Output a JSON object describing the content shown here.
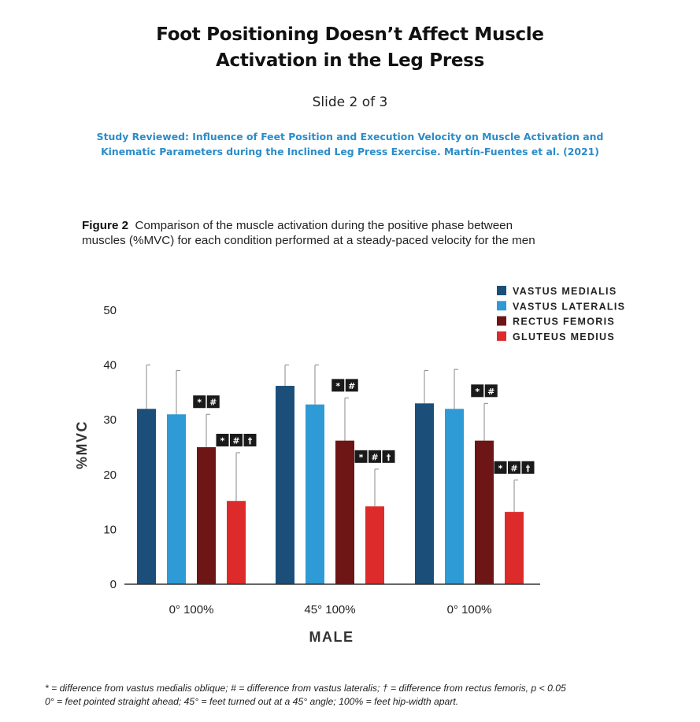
{
  "header": {
    "title_line1": "Foot Positioning Doesn’t Affect Muscle",
    "title_line2": "Activation in the Leg Press",
    "slide": "Slide 2 of 3",
    "study_line1": "Study Reviewed: Influence of Feet Position and Execution Velocity on Muscle Activation and",
    "study_line2": "Kinematic Parameters during the Inclined Leg Press Exercise. Martín-Fuentes et al. (2021)"
  },
  "figure": {
    "label": "Figure 2",
    "caption_line1": "Comparison of the muscle activation during the positive phase between",
    "caption_line2": "muscles (%MVC) for each condition performed at a steady-paced velocity for the men"
  },
  "footnote": {
    "line1": "* = difference from vastus medialis oblique; # = difference from vastus lateralis; † = difference from rectus femoris, p < 0.05",
    "line2": "0° = feet pointed straight ahead; 45° = feet turned out at a 45° angle; 100% = feet hip-width apart."
  },
  "colors": {
    "vastus_medialis": "#1b4f7a",
    "vastus_lateralis": "#2e9ad6",
    "rectus_femoris": "#6e1515",
    "gluteus_medius": "#dd2b2b",
    "study_text": "#2b8cc8",
    "marker_bg": "#1a1a1a"
  },
  "chart_data": {
    "type": "bar",
    "ylabel": "%MVC",
    "xlabel": "MALE",
    "ylim": [
      0,
      50
    ],
    "yticks": [
      0,
      10,
      20,
      30,
      40,
      50
    ],
    "grid": false,
    "legend_position": "top-right",
    "categories": [
      "0° 100%",
      "45° 100%",
      "0° 100%"
    ],
    "series": [
      {
        "name": "VASTUS MEDIALIS",
        "color": "#1b4f7a",
        "values": [
          32,
          36.2,
          33
        ],
        "error_upper": [
          40,
          40,
          39
        ]
      },
      {
        "name": "VASTUS LATERALIS",
        "color": "#2e9ad6",
        "values": [
          31,
          32.8,
          32
        ],
        "error_upper": [
          39,
          40,
          39.2
        ]
      },
      {
        "name": "RECTUS FEMORIS",
        "color": "#6e1515",
        "values": [
          25,
          26.2,
          26.2
        ],
        "error_upper": [
          31,
          34,
          33
        ]
      },
      {
        "name": "GLUTEUS MEDIUS",
        "color": "#dd2b2b",
        "values": [
          15.2,
          14.2,
          13.2
        ],
        "error_upper": [
          24,
          21,
          19
        ]
      }
    ],
    "significance": [
      {
        "category": 0,
        "series": 2,
        "symbols": [
          "*",
          "#"
        ]
      },
      {
        "category": 0,
        "series": 3,
        "symbols": [
          "*",
          "#",
          "†"
        ]
      },
      {
        "category": 1,
        "series": 2,
        "symbols": [
          "*",
          "#"
        ]
      },
      {
        "category": 1,
        "series": 3,
        "symbols": [
          "*",
          "#",
          "†"
        ]
      },
      {
        "category": 2,
        "series": 2,
        "symbols": [
          "*",
          "#"
        ]
      },
      {
        "category": 2,
        "series": 3,
        "symbols": [
          "*",
          "#",
          "†"
        ]
      }
    ]
  }
}
